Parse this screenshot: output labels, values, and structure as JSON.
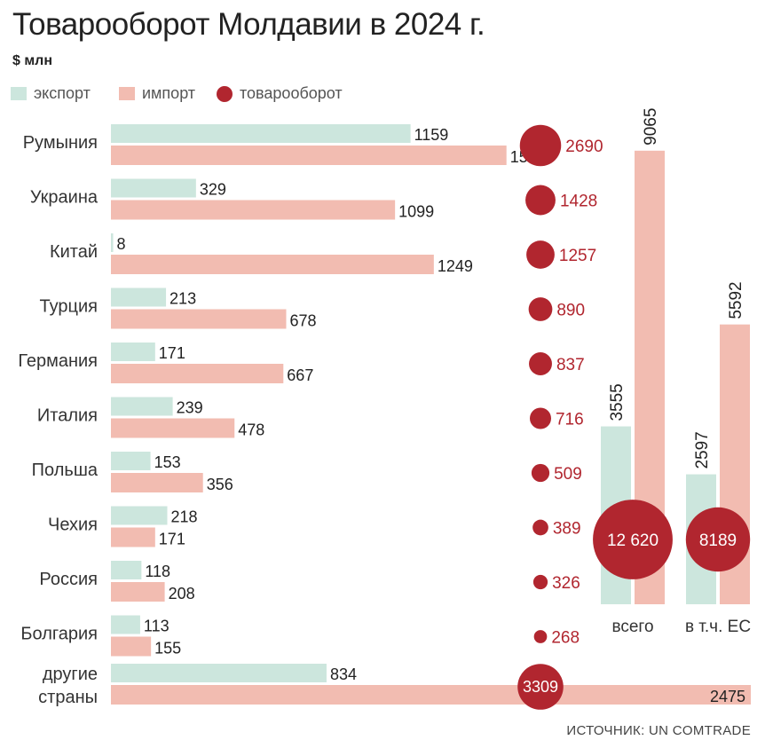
{
  "title": "Товарооборот Молдавии в 2024 г.",
  "unit": "$ млн",
  "legend": [
    {
      "label": "экспорт",
      "color": "#cce6dd",
      "shape": "square"
    },
    {
      "label": "импорт",
      "color": "#f2bcb1",
      "shape": "square"
    },
    {
      "label": "товарооборот",
      "color": "#b1262f",
      "shape": "circle"
    }
  ],
  "source": "ИСТОЧНИК: UN COMTRADE",
  "chart_data": [
    {
      "type": "bar",
      "orientation": "horizontal",
      "categories": [
        "Румыния",
        "Украина",
        "Китай",
        "Турция",
        "Германия",
        "Италия",
        "Польша",
        "Чехия",
        "Россия",
        "Болгария",
        "другие страны"
      ],
      "series": [
        {
          "name": "экспорт",
          "values": [
            1159,
            329,
            8,
            213,
            171,
            239,
            153,
            218,
            118,
            113,
            834
          ]
        },
        {
          "name": "импорт",
          "values": [
            1530,
            1099,
            1249,
            678,
            667,
            478,
            356,
            171,
            208,
            155,
            2475
          ]
        },
        {
          "name": "товарооборот",
          "values": [
            2690,
            1428,
            1257,
            890,
            837,
            716,
            509,
            389,
            326,
            268,
            3309
          ]
        }
      ]
    },
    {
      "type": "bar",
      "orientation": "vertical",
      "categories": [
        "всего",
        "в т.ч. ЕС"
      ],
      "series": [
        {
          "name": "экспорт",
          "values": [
            3555,
            2597
          ]
        },
        {
          "name": "импорт",
          "values": [
            9065,
            5592
          ]
        },
        {
          "name": "товарооборот",
          "values": [
            12620,
            8189
          ],
          "labels": [
            "12 620",
            "8189"
          ]
        }
      ]
    }
  ]
}
